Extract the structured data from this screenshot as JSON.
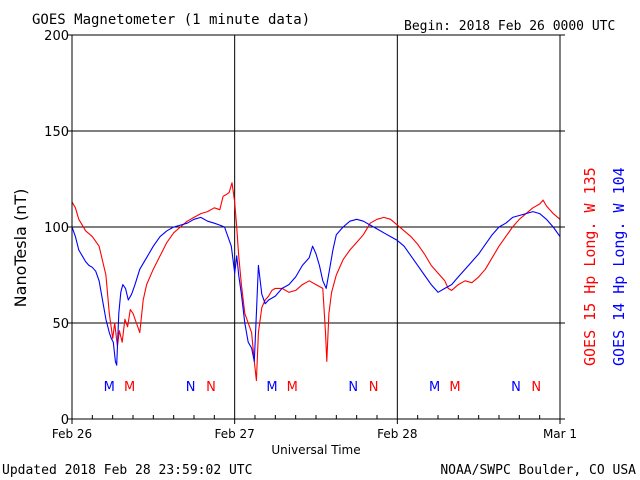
{
  "header": {
    "title": "GOES Magnetometer (1 minute data)",
    "begin": "Begin:  2018 Feb 26 0000 UTC"
  },
  "footer": {
    "updated": "Updated 2018 Feb 28 23:59:02 UTC",
    "credit": "NOAA/SWPC Boulder, CO USA"
  },
  "colors": {
    "goes15": "#ff0000",
    "goes14": "#0000ff",
    "axis": "#000000",
    "background": "#ffffff"
  },
  "chart_data": {
    "type": "line",
    "title": "GOES Magnetometer (1 minute data)",
    "xlabel": "Universal Time",
    "ylabel": "NanoTesla (nT)",
    "ylim": [
      0,
      200
    ],
    "xlim": [
      0,
      72
    ],
    "x_unit": "hours since 2018 Feb 26 0000 UTC",
    "yticks": [
      0,
      50,
      100,
      150,
      200
    ],
    "xticks": [
      {
        "x": 0,
        "label": "Feb 26"
      },
      {
        "x": 24,
        "label": "Feb 27"
      },
      {
        "x": 48,
        "label": "Feb 28"
      },
      {
        "x": 72,
        "label": "Mar 1"
      }
    ],
    "grid": true,
    "legend": "right (vertical text)",
    "markers": [
      {
        "label": "M",
        "x": 5.5,
        "series": "GOES 14 Hp"
      },
      {
        "label": "M",
        "x": 8.5,
        "series": "GOES 15 Hp"
      },
      {
        "label": "N",
        "x": 17.5,
        "series": "GOES 14 Hp"
      },
      {
        "label": "N",
        "x": 20.5,
        "series": "GOES 15 Hp"
      },
      {
        "label": "M",
        "x": 29.5,
        "series": "GOES 14 Hp"
      },
      {
        "label": "M",
        "x": 32.5,
        "series": "GOES 15 Hp"
      },
      {
        "label": "N",
        "x": 41.5,
        "series": "GOES 14 Hp"
      },
      {
        "label": "N",
        "x": 44.5,
        "series": "GOES 15 Hp"
      },
      {
        "label": "M",
        "x": 53.5,
        "series": "GOES 14 Hp"
      },
      {
        "label": "M",
        "x": 56.5,
        "series": "GOES 15 Hp"
      },
      {
        "label": "N",
        "x": 65.5,
        "series": "GOES 14 Hp"
      },
      {
        "label": "N",
        "x": 68.5,
        "series": "GOES 15 Hp"
      }
    ],
    "series": [
      {
        "name": "GOES 15 Hp  Long. W 135",
        "color": "#ff0000",
        "points": [
          [
            0,
            113
          ],
          [
            0.5,
            110
          ],
          [
            1,
            104
          ],
          [
            2,
            98
          ],
          [
            3,
            95
          ],
          [
            4,
            90
          ],
          [
            5,
            75
          ],
          [
            5.5,
            55
          ],
          [
            6,
            42
          ],
          [
            6.3,
            50
          ],
          [
            6.7,
            38
          ],
          [
            7,
            46
          ],
          [
            7.4,
            40
          ],
          [
            7.8,
            52
          ],
          [
            8.2,
            48
          ],
          [
            8.6,
            57
          ],
          [
            9,
            55
          ],
          [
            9.5,
            50
          ],
          [
            10,
            45
          ],
          [
            10.5,
            62
          ],
          [
            11,
            70
          ],
          [
            12,
            78
          ],
          [
            13,
            85
          ],
          [
            14,
            92
          ],
          [
            15,
            97
          ],
          [
            16,
            100
          ],
          [
            17,
            103
          ],
          [
            18,
            105
          ],
          [
            19,
            107
          ],
          [
            20,
            108
          ],
          [
            21,
            110
          ],
          [
            21.8,
            109
          ],
          [
            22.3,
            116
          ],
          [
            22.8,
            117
          ],
          [
            23.2,
            118
          ],
          [
            23.6,
            123
          ],
          [
            24,
            113
          ],
          [
            24.3,
            100
          ],
          [
            24.6,
            85
          ],
          [
            25,
            70
          ],
          [
            25.5,
            55
          ],
          [
            26,
            50
          ],
          [
            26.5,
            45
          ],
          [
            26.9,
            30
          ],
          [
            27.2,
            20
          ],
          [
            27.5,
            45
          ],
          [
            28,
            58
          ],
          [
            28.5,
            62
          ],
          [
            29,
            64
          ],
          [
            29.5,
            67
          ],
          [
            30,
            68
          ],
          [
            31,
            68
          ],
          [
            32,
            66
          ],
          [
            33,
            67
          ],
          [
            34,
            70
          ],
          [
            35,
            72
          ],
          [
            36,
            70
          ],
          [
            37,
            68
          ],
          [
            37.4,
            45
          ],
          [
            37.6,
            30
          ],
          [
            37.9,
            55
          ],
          [
            38.3,
            66
          ],
          [
            39,
            75
          ],
          [
            40,
            83
          ],
          [
            41,
            88
          ],
          [
            42,
            92
          ],
          [
            43,
            96
          ],
          [
            44,
            102
          ],
          [
            45,
            104
          ],
          [
            46,
            105
          ],
          [
            47,
            104
          ],
          [
            48,
            101
          ],
          [
            49,
            98
          ],
          [
            50,
            95
          ],
          [
            51,
            91
          ],
          [
            52,
            86
          ],
          [
            53,
            80
          ],
          [
            54,
            76
          ],
          [
            55,
            72
          ],
          [
            55.5,
            68
          ],
          [
            56,
            67
          ],
          [
            57,
            70
          ],
          [
            58,
            72
          ],
          [
            59,
            71
          ],
          [
            60,
            74
          ],
          [
            61,
            78
          ],
          [
            62,
            84
          ],
          [
            63,
            90
          ],
          [
            64,
            95
          ],
          [
            65,
            100
          ],
          [
            66,
            104
          ],
          [
            67,
            107
          ],
          [
            68,
            110
          ],
          [
            69,
            112
          ],
          [
            69.5,
            114
          ],
          [
            70,
            111
          ],
          [
            71,
            107
          ],
          [
            72,
            104
          ]
        ]
      },
      {
        "name": "GOES 14 Hp  Long. W 104",
        "color": "#0000ff",
        "points": [
          [
            0,
            100
          ],
          [
            0.5,
            95
          ],
          [
            1,
            88
          ],
          [
            1.5,
            85
          ],
          [
            2,
            82
          ],
          [
            2.5,
            80
          ],
          [
            3,
            79
          ],
          [
            3.5,
            77
          ],
          [
            4,
            72
          ],
          [
            4.5,
            62
          ],
          [
            5,
            52
          ],
          [
            5.5,
            45
          ],
          [
            5.8,
            42
          ],
          [
            6.1,
            40
          ],
          [
            6.4,
            30
          ],
          [
            6.6,
            28
          ],
          [
            6.9,
            55
          ],
          [
            7.2,
            66
          ],
          [
            7.5,
            70
          ],
          [
            7.9,
            68
          ],
          [
            8.3,
            62
          ],
          [
            8.8,
            65
          ],
          [
            9.3,
            70
          ],
          [
            10,
            78
          ],
          [
            11,
            84
          ],
          [
            12,
            90
          ],
          [
            13,
            95
          ],
          [
            14,
            98
          ],
          [
            15,
            100
          ],
          [
            16,
            101
          ],
          [
            17,
            102
          ],
          [
            18,
            104
          ],
          [
            19,
            105
          ],
          [
            20,
            103
          ],
          [
            21,
            102
          ],
          [
            21.8,
            101
          ],
          [
            22.5,
            100
          ],
          [
            23,
            95
          ],
          [
            23.5,
            90
          ],
          [
            24,
            76
          ],
          [
            24.3,
            85
          ],
          [
            24.6,
            75
          ],
          [
            25,
            65
          ],
          [
            25.5,
            50
          ],
          [
            26,
            40
          ],
          [
            26.5,
            37
          ],
          [
            26.9,
            30
          ],
          [
            27.2,
            55
          ],
          [
            27.5,
            80
          ],
          [
            28,
            65
          ],
          [
            28.5,
            60
          ],
          [
            29,
            62
          ],
          [
            30,
            64
          ],
          [
            31,
            68
          ],
          [
            32,
            70
          ],
          [
            33,
            74
          ],
          [
            34,
            80
          ],
          [
            35,
            84
          ],
          [
            35.5,
            90
          ],
          [
            36,
            86
          ],
          [
            36.5,
            80
          ],
          [
            37,
            72
          ],
          [
            37.5,
            68
          ],
          [
            38,
            78
          ],
          [
            38.5,
            88
          ],
          [
            39,
            96
          ],
          [
            40,
            100
          ],
          [
            41,
            103
          ],
          [
            42,
            104
          ],
          [
            43,
            103
          ],
          [
            44,
            101
          ],
          [
            45,
            99
          ],
          [
            46,
            97
          ],
          [
            47,
            95
          ],
          [
            48,
            93
          ],
          [
            49,
            90
          ],
          [
            50,
            85
          ],
          [
            51,
            80
          ],
          [
            52,
            75
          ],
          [
            53,
            70
          ],
          [
            54,
            66
          ],
          [
            55,
            68
          ],
          [
            56,
            70
          ],
          [
            57,
            74
          ],
          [
            58,
            78
          ],
          [
            59,
            82
          ],
          [
            60,
            86
          ],
          [
            61,
            91
          ],
          [
            62,
            96
          ],
          [
            63,
            100
          ],
          [
            64,
            102
          ],
          [
            65,
            105
          ],
          [
            66,
            106
          ],
          [
            67,
            107
          ],
          [
            68,
            108
          ],
          [
            69,
            107
          ],
          [
            70,
            104
          ],
          [
            71,
            100
          ],
          [
            72,
            95
          ]
        ]
      }
    ]
  }
}
